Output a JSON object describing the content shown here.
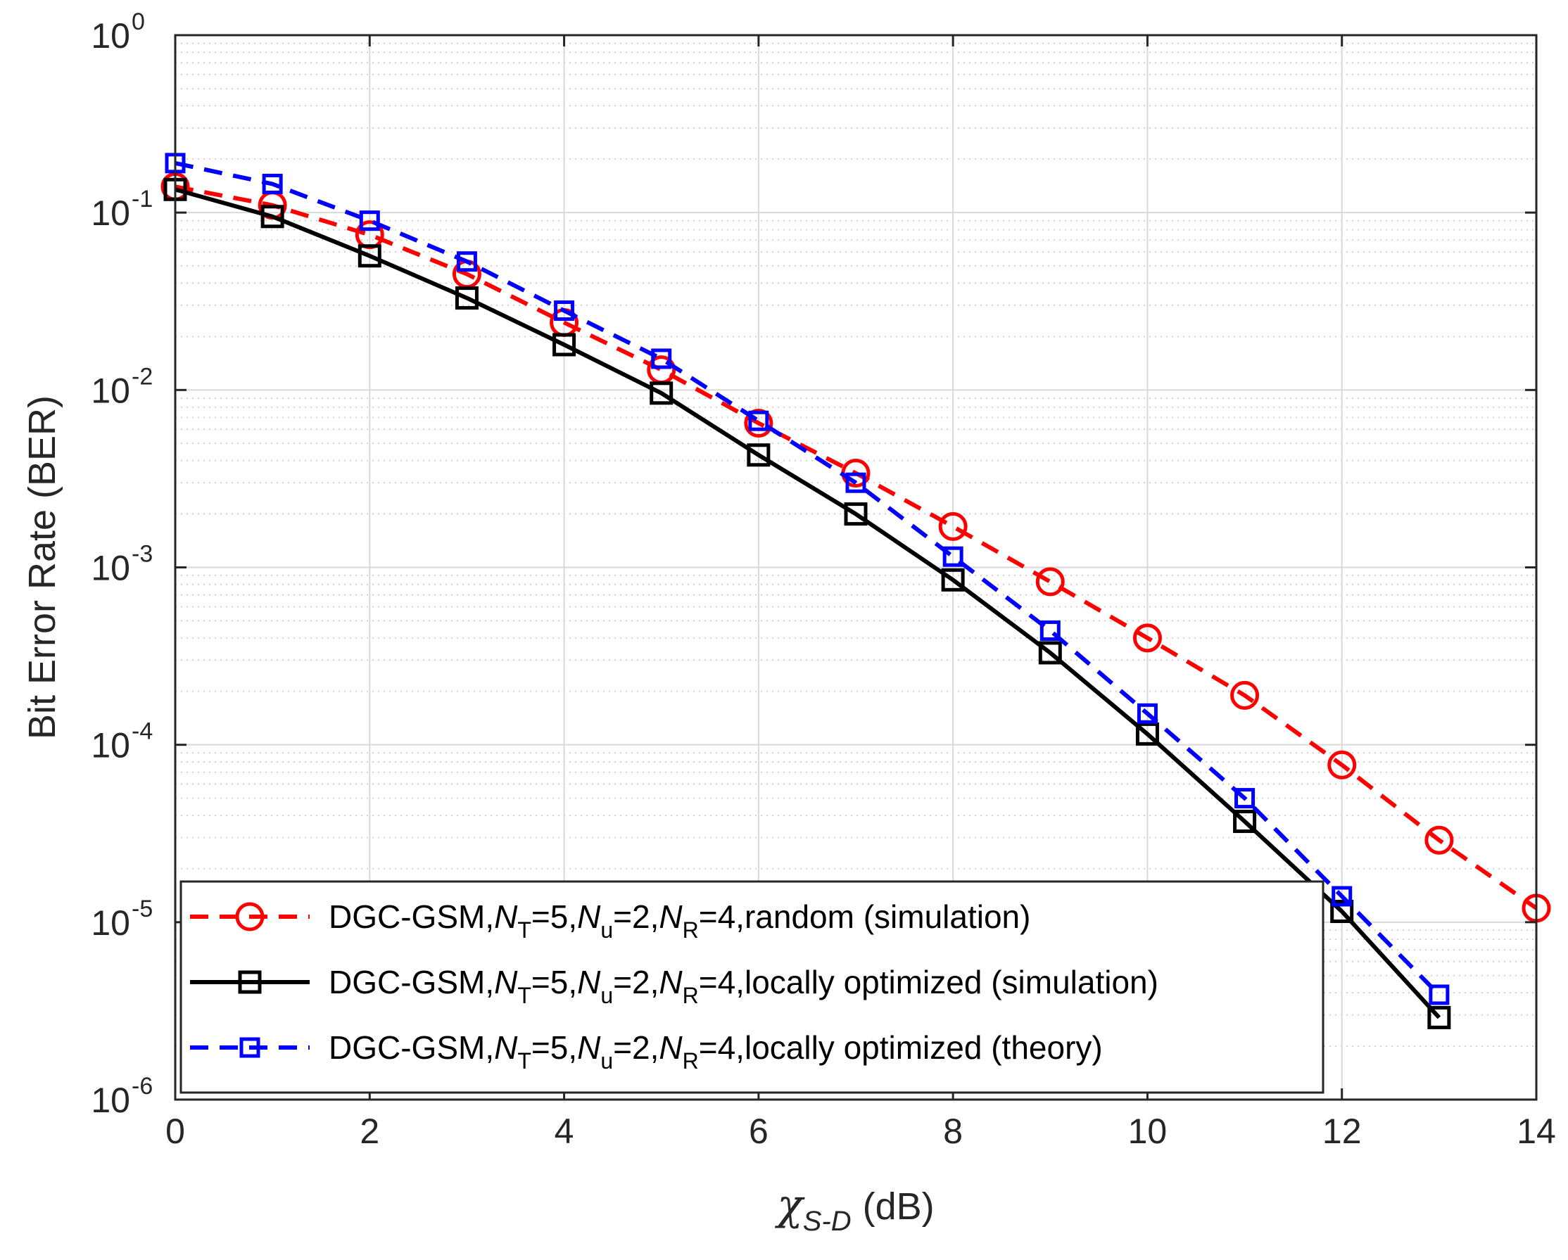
{
  "chart_data": {
    "type": "line",
    "title": "",
    "xlabel_symbol": "χ",
    "xlabel_subscript": "S-D",
    "xlabel_unit": "(dB)",
    "ylabel": "Bit Error Rate (BER)",
    "xlim": [
      0,
      14
    ],
    "ylim": [
      1e-06,
      1
    ],
    "yscale": "log",
    "grid": true,
    "minor_grid": true,
    "legend_position": "bottom-left",
    "x_ticks": [
      0,
      2,
      4,
      6,
      8,
      10,
      12,
      14
    ],
    "x_tick_labels": [
      "0",
      "2",
      "4",
      "6",
      "8",
      "10",
      "12",
      "14"
    ],
    "y_ticks": [
      {
        "base": "10",
        "exp": "0",
        "value": 1
      },
      {
        "base": "10",
        "exp": "-1",
        "value": 0.1
      },
      {
        "base": "10",
        "exp": "-2",
        "value": 0.01
      },
      {
        "base": "10",
        "exp": "-3",
        "value": 0.001
      },
      {
        "base": "10",
        "exp": "-4",
        "value": 0.0001
      },
      {
        "base": "10",
        "exp": "-5",
        "value": 1e-05
      },
      {
        "base": "10",
        "exp": "-6",
        "value": 1e-06
      }
    ],
    "series": [
      {
        "name": "DGC-GSM,NT=5,Nu=2,NR=4,random (simulation)",
        "legend": {
          "prefix": "DGC-GSM,",
          "nt_main": "N",
          "nt_sub": "T",
          "nt_val": "=5,",
          "nu_main": "N",
          "nu_sub": "u",
          "nu_val": "=2,",
          "nr_main": "N",
          "nr_sub": "R",
          "nr_val": "=4,",
          "suffix": "random (simulation)"
        },
        "color": "#ff0000",
        "line_style": "dashed",
        "marker": "circle",
        "x": [
          0,
          1,
          2,
          3,
          4,
          5,
          6,
          7,
          8,
          9,
          10,
          11,
          12,
          13,
          14
        ],
        "values": [
          0.14,
          0.11,
          0.075,
          0.045,
          0.024,
          0.013,
          0.0065,
          0.0034,
          0.0017,
          0.00083,
          0.0004,
          0.00019,
          7.7e-05,
          2.9e-05,
          1.2e-05
        ]
      },
      {
        "name": "DGC-GSM,NT=5,Nu=2,NR=4,locally optimized (simulation)",
        "legend": {
          "prefix": "DGC-GSM,",
          "nt_main": "N",
          "nt_sub": "T",
          "nt_val": "=5,",
          "nu_main": "N",
          "nu_sub": "u",
          "nu_val": "=2,",
          "nr_main": "N",
          "nr_sub": "R",
          "nr_val": "=4,",
          "suffix": "locally optimized (simulation)"
        },
        "color": "#000000",
        "line_style": "solid",
        "marker": "square",
        "x": [
          0,
          1,
          2,
          3,
          4,
          5,
          6,
          7,
          8,
          9,
          10,
          11,
          12,
          13
        ],
        "values": [
          0.135,
          0.095,
          0.057,
          0.033,
          0.018,
          0.0096,
          0.0043,
          0.002,
          0.00085,
          0.00033,
          0.000115,
          3.7e-05,
          1.15e-05,
          2.9e-06
        ]
      },
      {
        "name": "DGC-GSM,NT=5,Nu=2,NR=4,locally optimized (theory)",
        "legend": {
          "prefix": "DGC-GSM,",
          "nt_main": "N",
          "nt_sub": "T",
          "nt_val": "=5,",
          "nu_main": "N",
          "nu_sub": "u",
          "nu_val": "=2,",
          "nr_main": "N",
          "nr_sub": "R",
          "nr_val": "=4,",
          "suffix": "locally optimized (theory)"
        },
        "color": "#0000ff",
        "line_style": "dashed",
        "marker": "square-small",
        "x": [
          0,
          1,
          2,
          3,
          4,
          5,
          6,
          7,
          8,
          9,
          10,
          11,
          12,
          13
        ],
        "values": [
          0.19,
          0.145,
          0.09,
          0.053,
          0.028,
          0.015,
          0.0067,
          0.003,
          0.00115,
          0.00044,
          0.00015,
          5e-05,
          1.4e-05,
          3.9e-06
        ]
      }
    ]
  }
}
